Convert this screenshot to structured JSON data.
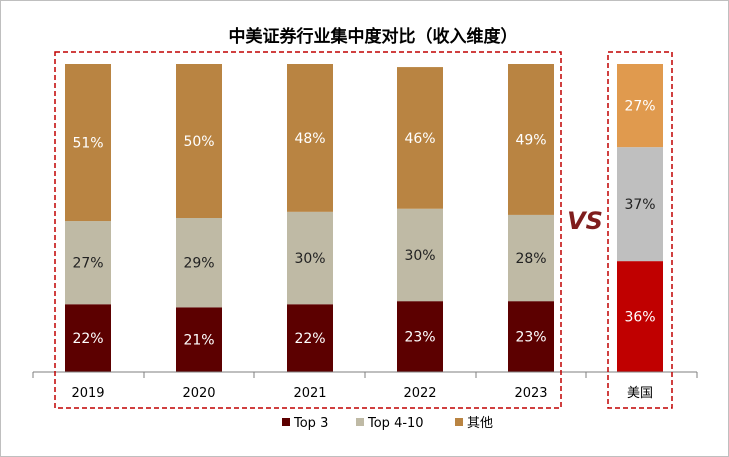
{
  "chart_data": {
    "type": "bar",
    "stacked": true,
    "title": "中美证券行业集中度对比（收入维度）",
    "categories": [
      "2019",
      "2020",
      "2021",
      "2022",
      "2023",
      "美国"
    ],
    "groups": [
      {
        "categories": [
          "2019",
          "2020",
          "2021",
          "2022",
          "2023"
        ]
      },
      {
        "categories": [
          "美国"
        ]
      }
    ],
    "comparison_label": "VS",
    "ylim": [
      0,
      100
    ],
    "unit": "%",
    "grid": false,
    "legend_position": "bottom",
    "series": [
      {
        "name": "Top 3",
        "values": [
          22,
          21,
          22,
          23,
          23,
          36
        ],
        "colors": [
          "#5c0000",
          "#5c0000",
          "#5c0000",
          "#5c0000",
          "#5c0000",
          "#c00000"
        ],
        "label_color": "#ffffff"
      },
      {
        "name": "Top 4-10",
        "values": [
          27,
          29,
          30,
          30,
          28,
          37
        ],
        "colors": [
          "#bfbaa5",
          "#bfbaa5",
          "#bfbaa5",
          "#bfbaa5",
          "#bfbaa5",
          "#bfbfbf"
        ],
        "label_color": "#222222"
      },
      {
        "name": "其他",
        "values": [
          51,
          50,
          48,
          46,
          49,
          27
        ],
        "colors": [
          "#b98442",
          "#b98442",
          "#b98442",
          "#b98442",
          "#b98442",
          "#e09a4e"
        ],
        "label_color": "#ffffff"
      }
    ],
    "legend_colors": [
      "#5c0000",
      "#bfbaa5",
      "#b98442"
    ]
  }
}
